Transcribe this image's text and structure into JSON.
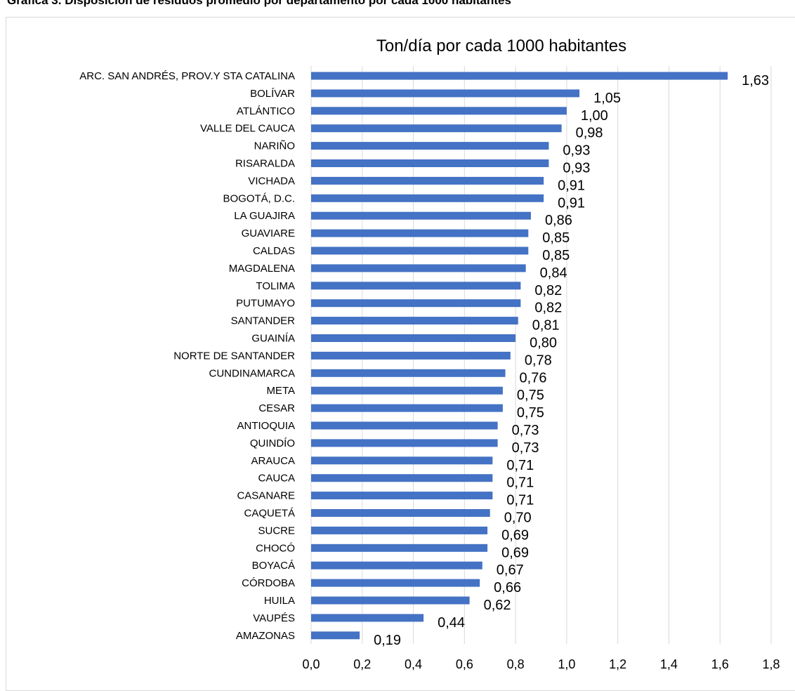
{
  "caption": "Gráfica 3. Disposición de residuos promedio por departamento por cada 1000 habitantes",
  "chart_data": {
    "type": "bar",
    "orientation": "horizontal",
    "title": "Ton/día por cada 1000 habitantes",
    "xlabel": "",
    "ylabel": "",
    "xlim": [
      0,
      1.8
    ],
    "xticks": [
      0.0,
      0.2,
      0.4,
      0.6,
      0.8,
      1.0,
      1.2,
      1.4,
      1.6,
      1.8
    ],
    "tick_labels": [
      "0,0",
      "0,2",
      "0,4",
      "0,6",
      "0,8",
      "1,0",
      "1,2",
      "1,4",
      "1,6",
      "1,8"
    ],
    "grid": "vertical",
    "legend": "none",
    "bar_color": "#4472c4",
    "categories": [
      "ARC. SAN ANDRÉS, PROV.Y STA CATALINA",
      "BOLÍVAR",
      "ATLÁNTICO",
      "VALLE DEL CAUCA",
      "NARIÑO",
      "RISARALDA",
      "VICHADA",
      "BOGOTÁ, D.C.",
      "LA GUAJIRA",
      "GUAVIARE",
      "CALDAS",
      "MAGDALENA",
      "TOLIMA",
      "PUTUMAYO",
      "SANTANDER",
      "GUAINÍA",
      "NORTE DE SANTANDER",
      "CUNDINAMARCA",
      "META",
      "CESAR",
      "ANTIOQUIA",
      "QUINDÍO",
      "ARAUCA",
      "CAUCA",
      "CASANARE",
      "CAQUETÁ",
      "SUCRE",
      "CHOCÓ",
      "BOYACÁ",
      "CÓRDOBA",
      "HUILA",
      "VAUPÉS",
      "AMAZONAS"
    ],
    "values": [
      1.63,
      1.05,
      1.0,
      0.98,
      0.93,
      0.93,
      0.91,
      0.91,
      0.86,
      0.85,
      0.85,
      0.84,
      0.82,
      0.82,
      0.81,
      0.8,
      0.78,
      0.76,
      0.75,
      0.75,
      0.73,
      0.73,
      0.71,
      0.71,
      0.71,
      0.7,
      0.69,
      0.69,
      0.67,
      0.66,
      0.62,
      0.44,
      0.19
    ],
    "value_labels": [
      "1,63",
      "1,05",
      "1,00",
      "0,98",
      "0,93",
      "0,93",
      "0,91",
      "0,91",
      "0,86",
      "0,85",
      "0,85",
      "0,84",
      "0,82",
      "0,82",
      "0,81",
      "0,80",
      "0,78",
      "0,76",
      "0,75",
      "0,75",
      "0,73",
      "0,73",
      "0,71",
      "0,71",
      "0,71",
      "0,70",
      "0,69",
      "0,69",
      "0,67",
      "0,66",
      "0,62",
      "0,44",
      "0,19"
    ]
  }
}
